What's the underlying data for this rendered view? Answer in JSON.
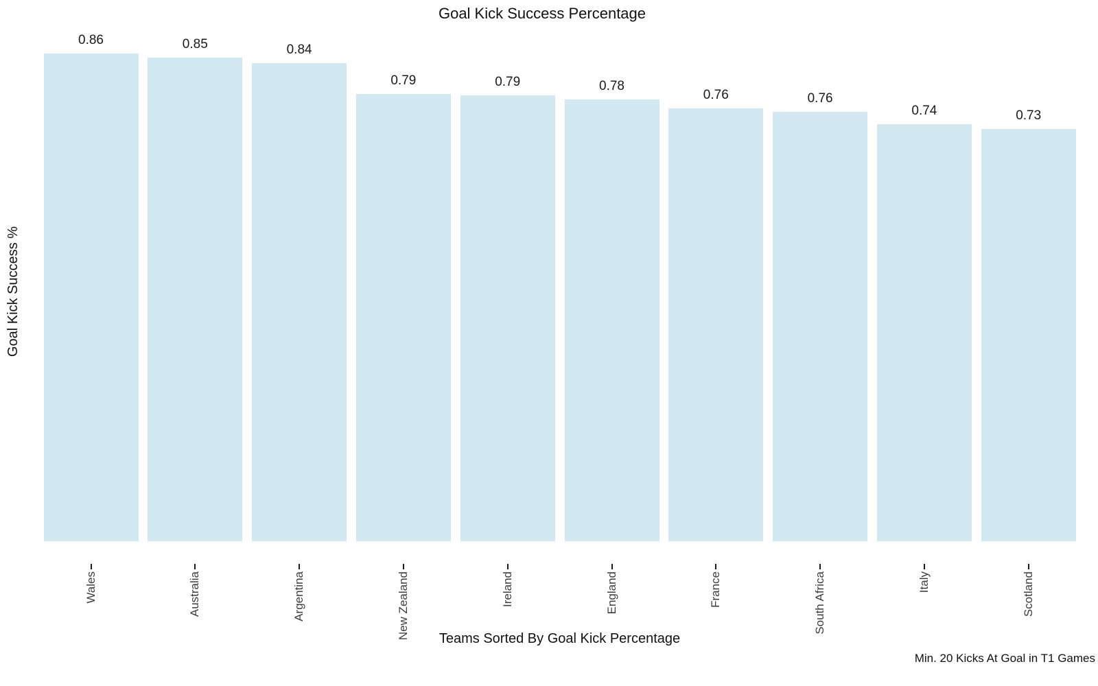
{
  "chart_data": {
    "type": "bar",
    "title": "Goal Kick Success Percentage",
    "xlabel": "Teams Sorted By Goal Kick Percentage",
    "ylabel": "Goal Kick Success %",
    "annotation": "Min. 20 Kicks At Goal in T1 Games",
    "categories": [
      "Wales",
      "Australia",
      "Argentina",
      "New Zealand",
      "Ireland",
      "England",
      "France",
      "South Africa",
      "Italy",
      "Scotland"
    ],
    "values": [
      0.86,
      0.85,
      0.84,
      0.79,
      0.79,
      0.78,
      0.76,
      0.76,
      0.74,
      0.73
    ],
    "values_precise": [
      0.86,
      0.853,
      0.844,
      0.789,
      0.786,
      0.779,
      0.763,
      0.757,
      0.736,
      0.727
    ],
    "bar_color": "#d2e8f0",
    "value_label_color": "#1a1a1a",
    "tick_label_color": "#3c3c3c",
    "ylim": [
      0,
      0.95
    ],
    "grid": false,
    "legend": null,
    "x_tick_rotation": 90
  }
}
